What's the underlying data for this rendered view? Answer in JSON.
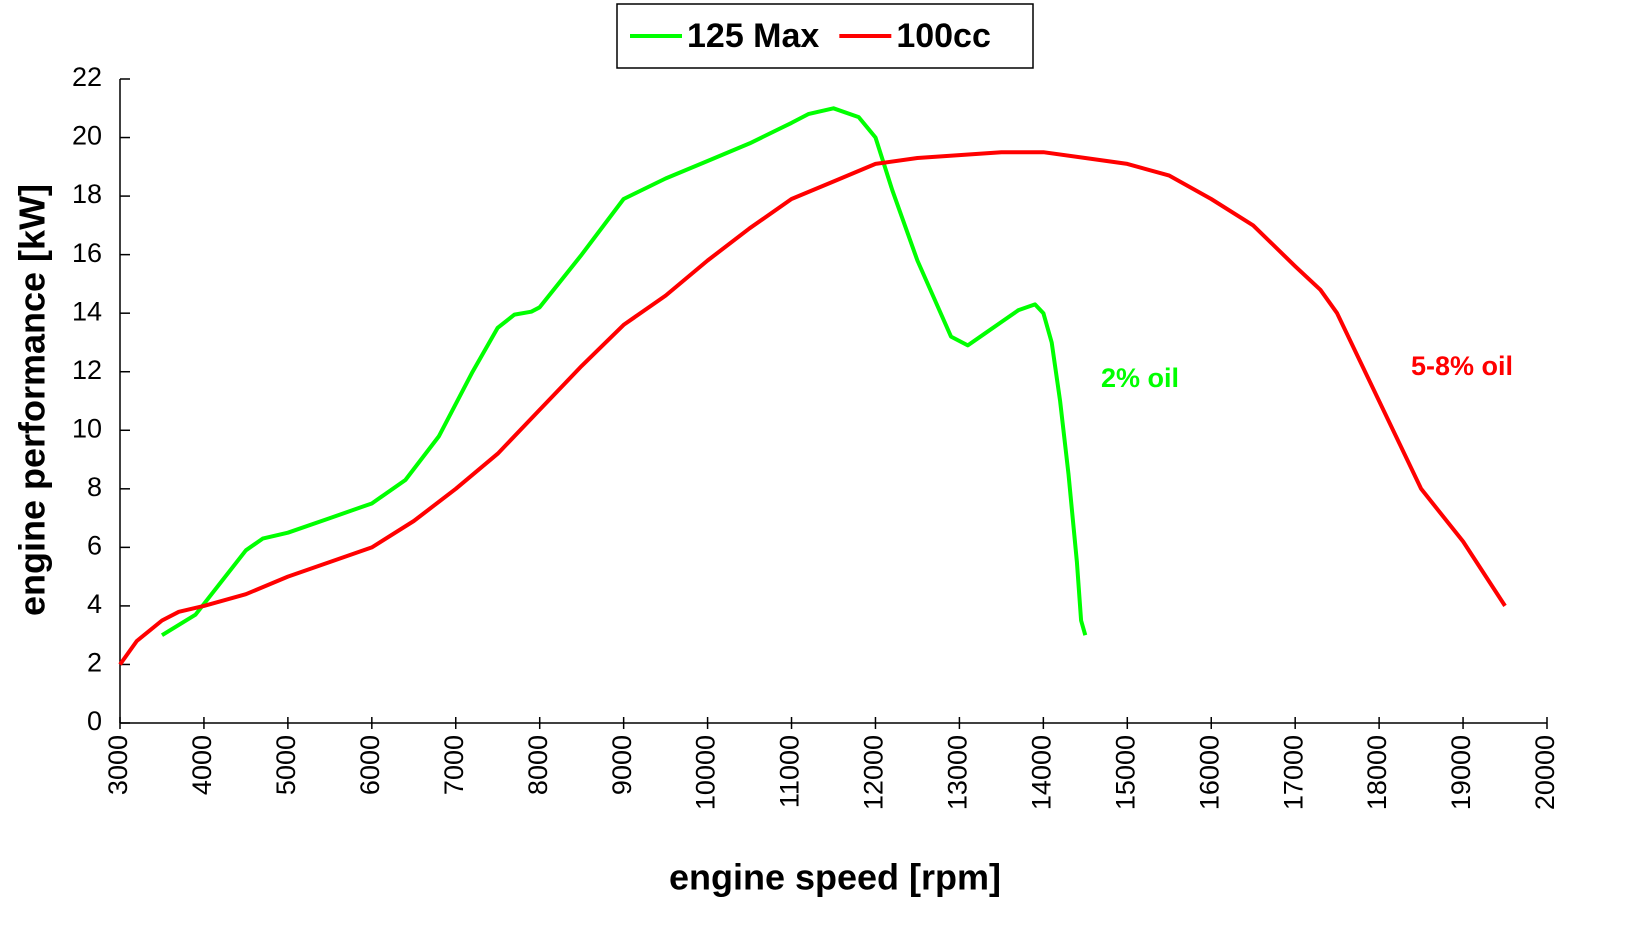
{
  "chart_data": {
    "type": "line",
    "xlabel": "engine speed [rpm]",
    "ylabel": "engine performance [kW]",
    "xlim": [
      3000,
      20000
    ],
    "xticks": [
      3000,
      4000,
      5000,
      6000,
      7000,
      8000,
      9000,
      10000,
      11000,
      12000,
      13000,
      14000,
      15000,
      16000,
      17000,
      18000,
      19000,
      20000
    ],
    "ylim": [
      0,
      22
    ],
    "yticks": [
      0,
      2,
      4,
      6,
      8,
      10,
      12,
      14,
      16,
      18,
      20,
      22
    ],
    "grid": false,
    "legend": "top",
    "series": [
      {
        "name": "125 Max",
        "color": "#00ff00",
        "x": [
          3500,
          3900,
          4200,
          4500,
          4700,
          5000,
          5500,
          5900,
          6000,
          6400,
          6800,
          7200,
          7500,
          7700,
          7900,
          8000,
          8500,
          9000,
          9500,
          10000,
          10500,
          11000,
          11200,
          11500,
          11800,
          12000,
          12200,
          12500,
          12700,
          12900,
          13100,
          13300,
          13500,
          13700,
          13900,
          14000,
          14100,
          14200,
          14300,
          14400,
          14450,
          14500
        ],
        "values": [
          3,
          3.7,
          4.8,
          5.9,
          6.3,
          6.5,
          7.0,
          7.4,
          7.5,
          8.3,
          9.8,
          12,
          13.5,
          13.95,
          14.05,
          14.2,
          16,
          17.9,
          18.6,
          19.2,
          19.8,
          20.5,
          20.8,
          21,
          20.7,
          20,
          18.2,
          15.8,
          14.5,
          13.2,
          12.9,
          13.3,
          13.7,
          14.1,
          14.3,
          14.0,
          13,
          11,
          8.5,
          5.5,
          3.5,
          3
        ]
      },
      {
        "name": "100cc",
        "color": "#ff0000",
        "x": [
          3000,
          3200,
          3500,
          3700,
          4000,
          4500,
          5000,
          5500,
          6000,
          6500,
          7000,
          7500,
          8000,
          8500,
          9000,
          9500,
          10000,
          10500,
          11000,
          11500,
          12000,
          12500,
          13000,
          13500,
          14000,
          14500,
          15000,
          15500,
          16000,
          16500,
          17000,
          17300,
          17500,
          18000,
          18500,
          19000,
          19500
        ],
        "values": [
          2,
          2.8,
          3.5,
          3.8,
          4.0,
          4.4,
          5.0,
          5.5,
          6.0,
          6.9,
          8.0,
          9.2,
          10.7,
          12.2,
          13.6,
          14.6,
          15.8,
          16.9,
          17.9,
          18.5,
          19.1,
          19.3,
          19.4,
          19.5,
          19.5,
          19.3,
          19.1,
          18.7,
          17.9,
          17,
          15.6,
          14.8,
          14,
          11,
          8,
          6.2,
          4
        ]
      }
    ],
    "annotations": [
      {
        "text": "2% oil",
        "color": "#00ff00"
      },
      {
        "text": "5-8% oil",
        "color": "#ff0000"
      }
    ]
  }
}
